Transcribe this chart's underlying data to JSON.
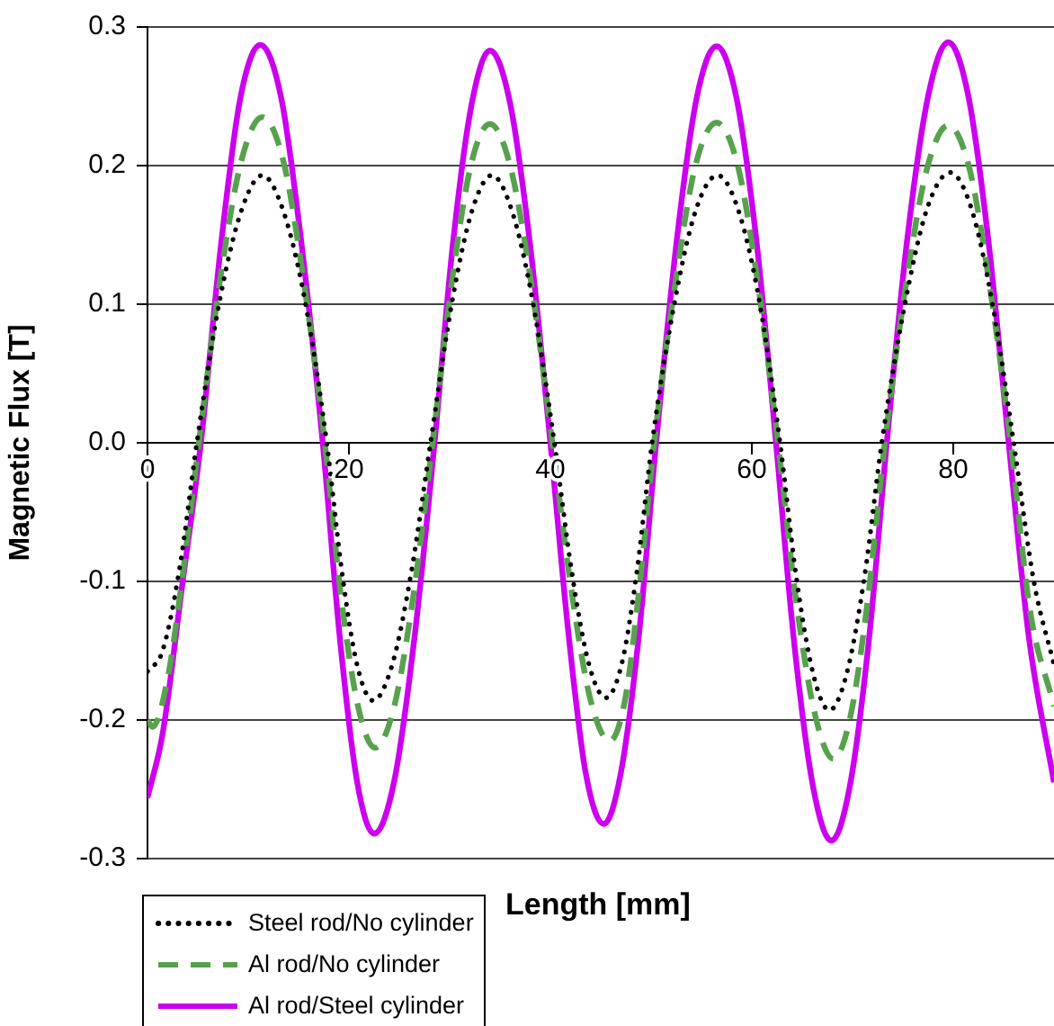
{
  "chart_data": {
    "type": "line",
    "xlabel": "Length [mm]",
    "ylabel": "Magnetic Flux [T]",
    "xlim": [
      0,
      90
    ],
    "xticks": [
      0,
      20,
      40,
      60,
      80
    ],
    "ylim": [
      -0.3,
      0.3
    ],
    "yticks": [
      -0.3,
      -0.2,
      -0.1,
      {
        "value": 0,
        "label": "0.0"
      },
      0.1,
      0.2,
      0.3
    ],
    "grid": "y",
    "legend": "bottom left",
    "series": [
      {
        "name": "Steel rod/No cylinder",
        "color": "#000000",
        "line_style": "dotted",
        "x": [
          0,
          1.5,
          3.2,
          4.9,
          7.1,
          9.3,
          11.4,
          13.5,
          15.7,
          17.8,
          19.3,
          20.8,
          22.4,
          24.3,
          26.2,
          28.1,
          30.2,
          32.2,
          34.2,
          36.2,
          38.3,
          40.4,
          42.1,
          43.8,
          45.5,
          47.1,
          48.6,
          50.1,
          52.3,
          54.4,
          56.6,
          58.7,
          60.8,
          62.8,
          64.4,
          66.1,
          67.7,
          69.4,
          71.2,
          72.9,
          75.2,
          77.4,
          79.7,
          81.8,
          83.9,
          86.0,
          88.0,
          90
        ],
        "values": [
          -0.165,
          -0.15,
          -0.09,
          0,
          0.1,
          0.167,
          0.193,
          0.167,
          0.1,
          0,
          -0.093,
          -0.16,
          -0.186,
          -0.16,
          -0.093,
          0,
          0.1,
          0.167,
          0.193,
          0.167,
          0.1,
          0,
          -0.092,
          -0.159,
          -0.184,
          -0.159,
          -0.092,
          0,
          0.1,
          0.167,
          0.193,
          0.167,
          0.1,
          0,
          -0.096,
          -0.167,
          -0.193,
          -0.167,
          -0.096,
          0,
          0.1,
          0.169,
          0.195,
          0.169,
          0.1,
          0,
          -0.1,
          -0.16
        ]
      },
      {
        "name": "Al rod/No cylinder",
        "color": "#58a14e",
        "line_style": "dashed",
        "x": [
          0,
          0.5,
          2.0,
          3.5,
          5.1,
          7.2,
          9.3,
          11.4,
          13.5,
          15.5,
          17.6,
          19.2,
          20.9,
          22.6,
          24.5,
          26.4,
          28.3,
          30.2,
          32.1,
          34.0,
          36.0,
          38.1,
          40.2,
          42.1,
          44.0,
          45.9,
          47.4,
          48.8,
          50.3,
          52.4,
          54.4,
          56.5,
          58.6,
          60.6,
          62.6,
          64.4,
          66.3,
          68.1,
          69.8,
          71.5,
          73.2,
          75.3,
          77.4,
          79.5,
          81.6,
          83.6,
          85.7,
          87.6,
          90
        ],
        "values": [
          -0.2,
          -0.205,
          -0.17,
          -0.095,
          0,
          0.117,
          0.203,
          0.235,
          0.203,
          0.117,
          0,
          -0.11,
          -0.19,
          -0.22,
          -0.19,
          -0.11,
          0,
          0.115,
          0.2,
          0.23,
          0.2,
          0.115,
          0,
          -0.107,
          -0.186,
          -0.215,
          -0.186,
          -0.107,
          0,
          0.115,
          0.2,
          0.231,
          0.2,
          0.115,
          0,
          -0.114,
          -0.197,
          -0.228,
          -0.197,
          -0.114,
          0,
          0.114,
          0.198,
          0.229,
          0.198,
          0.114,
          0,
          -0.12,
          -0.19
        ]
      },
      {
        "name": "Al rod/Steel cylinder",
        "color": "#cc00ee",
        "line_style": "solid",
        "x": [
          0,
          1.5,
          3.5,
          5.3,
          7.3,
          9.2,
          11.2,
          13.3,
          15.3,
          17.4,
          19.1,
          20.8,
          22.5,
          24.5,
          26.5,
          28.5,
          30.3,
          32.2,
          34.0,
          36.0,
          38.0,
          40.0,
          41.8,
          43.5,
          45.3,
          47.0,
          48.8,
          50.5,
          52.5,
          54.5,
          56.5,
          58.5,
          60.5,
          62.4,
          64.2,
          66.1,
          67.9,
          69.7,
          71.6,
          73.4,
          75.4,
          77.5,
          79.5,
          81.5,
          83.5,
          85.5,
          87.5,
          90
        ],
        "values": [
          -0.256,
          -0.21,
          -0.1,
          0,
          0.143,
          0.248,
          0.287,
          0.248,
          0.143,
          0,
          -0.141,
          -0.244,
          -0.282,
          -0.244,
          -0.141,
          0,
          0.142,
          0.245,
          0.283,
          0.245,
          0.142,
          0,
          -0.138,
          -0.238,
          -0.275,
          -0.238,
          -0.138,
          0,
          0.143,
          0.248,
          0.286,
          0.248,
          0.143,
          0,
          -0.144,
          -0.249,
          -0.287,
          -0.249,
          -0.144,
          0,
          0.145,
          0.25,
          0.289,
          0.25,
          0.145,
          0,
          -0.14,
          -0.245
        ]
      }
    ]
  }
}
